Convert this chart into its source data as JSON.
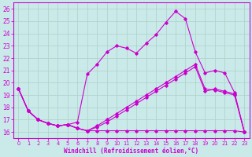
{
  "xlabel": "Windchill (Refroidissement éolien,°C)",
  "background_color": "#caeaea",
  "grid_color": "#b0d4cc",
  "line_color": "#cc00cc",
  "xlim": [
    -0.5,
    23.5
  ],
  "ylim": [
    15.5,
    26.5
  ],
  "yticks": [
    16,
    17,
    18,
    19,
    20,
    21,
    22,
    23,
    24,
    25,
    26
  ],
  "xticks": [
    0,
    1,
    2,
    3,
    4,
    5,
    6,
    7,
    8,
    9,
    10,
    11,
    12,
    13,
    14,
    15,
    16,
    17,
    18,
    19,
    20,
    21,
    22,
    23
  ],
  "series": [
    {
      "x": [
        0,
        1,
        2,
        3,
        4,
        5,
        6,
        7,
        8,
        9,
        10,
        11,
        12,
        13,
        14,
        15,
        16,
        17,
        18,
        19,
        20,
        21,
        22,
        23
      ],
      "y": [
        19.5,
        17.7,
        17.0,
        16.7,
        16.5,
        16.6,
        16.8,
        20.7,
        21.5,
        22.5,
        23.0,
        22.8,
        22.4,
        23.2,
        23.9,
        24.9,
        25.8,
        25.2,
        22.5,
        20.8,
        21.0,
        20.8,
        19.2,
        16.0
      ]
    },
    {
      "x": [
        0,
        1,
        2,
        3,
        4,
        5,
        6,
        7,
        8,
        9,
        10,
        11,
        12,
        13,
        14,
        15,
        16,
        17,
        18,
        19,
        20,
        21,
        22,
        23
      ],
      "y": [
        19.5,
        17.7,
        17.0,
        16.7,
        16.5,
        16.6,
        16.3,
        16.1,
        16.5,
        17.0,
        17.5,
        18.0,
        18.5,
        19.0,
        19.5,
        20.0,
        20.5,
        21.0,
        21.5,
        19.5,
        19.4,
        19.2,
        19.0,
        16.0
      ]
    },
    {
      "x": [
        0,
        1,
        2,
        3,
        4,
        5,
        6,
        7,
        8,
        9,
        10,
        11,
        12,
        13,
        14,
        15,
        16,
        17,
        18,
        19,
        20,
        21,
        22,
        23
      ],
      "y": [
        19.5,
        17.7,
        17.0,
        16.7,
        16.5,
        16.6,
        16.3,
        16.1,
        16.1,
        16.1,
        16.1,
        16.1,
        16.1,
        16.1,
        16.1,
        16.1,
        16.1,
        16.1,
        16.1,
        16.1,
        16.1,
        16.1,
        16.1,
        16.0
      ]
    },
    {
      "x": [
        0,
        1,
        2,
        3,
        4,
        5,
        6,
        7,
        8,
        9,
        10,
        11,
        12,
        13,
        14,
        15,
        16,
        17,
        18,
        19,
        20,
        21,
        22,
        23
      ],
      "y": [
        19.5,
        17.7,
        17.0,
        16.7,
        16.5,
        16.6,
        16.3,
        16.1,
        16.4,
        16.8,
        17.3,
        17.8,
        18.3,
        18.8,
        19.3,
        19.8,
        20.3,
        20.8,
        21.3,
        19.3,
        19.5,
        19.3,
        19.1,
        16.0
      ]
    }
  ]
}
